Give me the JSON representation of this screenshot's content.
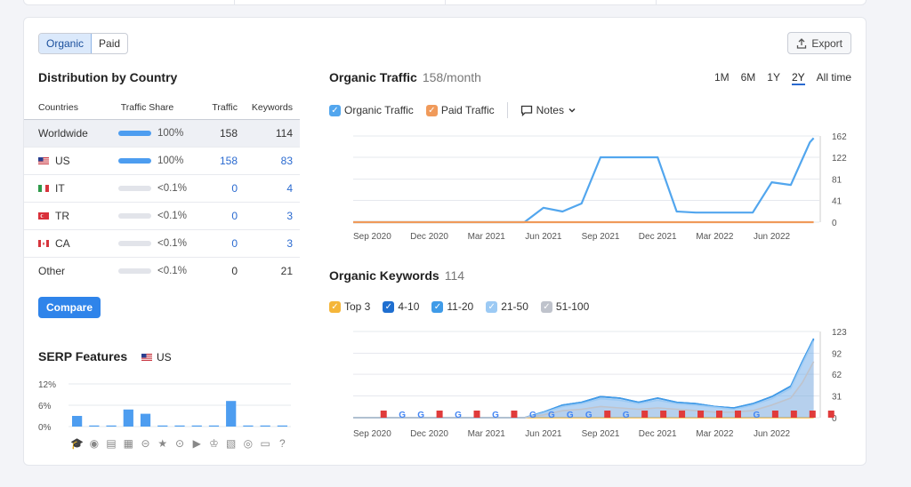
{
  "toggle": {
    "organic": "Organic",
    "paid": "Paid"
  },
  "export_label": "Export",
  "distribution": {
    "title": "Distribution by Country",
    "headers": [
      "Countries",
      "Traffic Share",
      "Traffic",
      "Keywords"
    ],
    "rows": [
      {
        "country": "Worldwide",
        "flag": "",
        "share": "100%",
        "share_fraction": 1.0,
        "traffic": "158",
        "keywords": "114"
      },
      {
        "country": "US",
        "flag": "us",
        "share": "100%",
        "share_fraction": 1.0,
        "traffic": "158",
        "keywords": "83"
      },
      {
        "country": "IT",
        "flag": "it",
        "share": "<0.1%",
        "share_fraction": 0,
        "traffic": "0",
        "keywords": "4"
      },
      {
        "country": "TR",
        "flag": "tr",
        "share": "<0.1%",
        "share_fraction": 0,
        "traffic": "0",
        "keywords": "3"
      },
      {
        "country": "CA",
        "flag": "ca",
        "share": "<0.1%",
        "share_fraction": 0,
        "traffic": "0",
        "keywords": "3"
      },
      {
        "country": "Other",
        "flag": "",
        "share": "<0.1%",
        "share_fraction": 0,
        "traffic": "0",
        "keywords": "21"
      }
    ]
  },
  "compare_label": "Compare",
  "serp": {
    "title": "SERP Features",
    "country": "US",
    "y_ticks": [
      "12%",
      "6%",
      "0%"
    ],
    "icons": [
      "graduation-cap-icon",
      "location-pin-icon",
      "document-icon",
      "image-pack-icon",
      "link-icon",
      "star-icon",
      "video-play-icon",
      "video-carousel-icon",
      "crown-icon",
      "image-icon",
      "play-circle-icon",
      "comment-icon",
      "question-icon"
    ],
    "glyphs": [
      "🎓",
      "◉",
      "▤",
      "▦",
      "⊝",
      "★",
      "⊙",
      "▶",
      "♔",
      "▧",
      "◎",
      "▭",
      "?"
    ]
  },
  "organic_traffic": {
    "title": "Organic Traffic",
    "subtitle": "158/month",
    "ranges": [
      "1M",
      "6M",
      "1Y",
      "2Y",
      "All time"
    ],
    "active_range": "2Y",
    "legend": {
      "organic": "Organic Traffic",
      "paid": "Paid Traffic",
      "notes": "Notes"
    }
  },
  "organic_keywords": {
    "title": "Organic Keywords",
    "subtitle": "114",
    "legend": [
      "Top 3",
      "4-10",
      "11-20",
      "21-50",
      "51-100"
    ]
  },
  "colors": {
    "organic": "#52a6ee",
    "paid": "#f09a5a",
    "top3": "#f5b63a",
    "k410": "#1f6fd0",
    "k1120": "#3f9be8",
    "k2150": "#9ccaf4",
    "k51100": "#bfc3cc",
    "serp_bar": "#4d9df0",
    "flag_red": "#e03b3b"
  },
  "chart_data": [
    {
      "type": "line",
      "title": "Organic Traffic",
      "x_labels": [
        "Sep 2020",
        "Dec 2020",
        "Mar 2021",
        "Jun 2021",
        "Sep 2021",
        "Dec 2021",
        "Mar 2022",
        "Jun 2022"
      ],
      "y_ticks": [
        0,
        41,
        81,
        122,
        162
      ],
      "ylim": [
        0,
        162
      ],
      "series": [
        {
          "name": "Organic Traffic",
          "points": [
            [
              0,
              0
            ],
            [
              1,
              0
            ],
            [
              2,
              0
            ],
            [
              3,
              0
            ],
            [
              4,
              0
            ],
            [
              5,
              0
            ],
            [
              6,
              0
            ],
            [
              7,
              0
            ],
            [
              8,
              0
            ],
            [
              9,
              0
            ],
            [
              10,
              27
            ],
            [
              11,
              20
            ],
            [
              12,
              35
            ],
            [
              13,
              122
            ],
            [
              14,
              122
            ],
            [
              15,
              122
            ],
            [
              16,
              122
            ],
            [
              17,
              20
            ],
            [
              18,
              18
            ],
            [
              19,
              18
            ],
            [
              20,
              18
            ],
            [
              21,
              18
            ],
            [
              22,
              75
            ],
            [
              23,
              70
            ],
            [
              24,
              150
            ],
            [
              24.2,
              158
            ]
          ]
        },
        {
          "name": "Paid Traffic",
          "points": [
            [
              0,
              0
            ],
            [
              24.2,
              0
            ]
          ]
        }
      ],
      "notes_flags": []
    },
    {
      "type": "area",
      "title": "Organic Keywords",
      "x_labels": [
        "Sep 2020",
        "Dec 2020",
        "Mar 2021",
        "Jun 2021",
        "Sep 2021",
        "Dec 2021",
        "Mar 2022",
        "Jun 2022"
      ],
      "y_ticks": [
        0,
        31,
        62,
        92,
        123
      ],
      "ylim": [
        0,
        123
      ],
      "series": [
        {
          "name": "Top 3",
          "points": [
            [
              0,
              0
            ],
            [
              24.2,
              0
            ]
          ]
        },
        {
          "name": "4-10",
          "points": [
            [
              0,
              0
            ],
            [
              9,
              0
            ],
            [
              10,
              8
            ],
            [
              11,
              18
            ],
            [
              12,
              22
            ],
            [
              13,
              30
            ],
            [
              14,
              28
            ],
            [
              15,
              22
            ],
            [
              16,
              28
            ],
            [
              17,
              22
            ],
            [
              18,
              20
            ],
            [
              19,
              16
            ],
            [
              20,
              14
            ],
            [
              21,
              20
            ],
            [
              22,
              30
            ],
            [
              23,
              45
            ],
            [
              23.6,
              80
            ],
            [
              24.2,
              112
            ]
          ]
        },
        {
          "name": "11-20",
          "points": [
            [
              0,
              0
            ],
            [
              9,
              0
            ],
            [
              10,
              8
            ],
            [
              11,
              18
            ],
            [
              12,
              22
            ],
            [
              13,
              30
            ],
            [
              14,
              28
            ],
            [
              15,
              22
            ],
            [
              16,
              28
            ],
            [
              17,
              22
            ],
            [
              18,
              20
            ],
            [
              19,
              16
            ],
            [
              20,
              14
            ],
            [
              21,
              20
            ],
            [
              22,
              30
            ],
            [
              23,
              45
            ],
            [
              23.6,
              80
            ],
            [
              24.2,
              113
            ]
          ]
        },
        {
          "name": "21-50",
          "points": [
            [
              0,
              0
            ],
            [
              9,
              0
            ],
            [
              10,
              7
            ],
            [
              11,
              16
            ],
            [
              12,
              20
            ],
            [
              13,
              27
            ],
            [
              14,
              25
            ],
            [
              15,
              20
            ],
            [
              16,
              25
            ],
            [
              17,
              20
            ],
            [
              18,
              18
            ],
            [
              19,
              15
            ],
            [
              20,
              12
            ],
            [
              21,
              18
            ],
            [
              22,
              27
            ],
            [
              23,
              42
            ],
            [
              23.6,
              77
            ],
            [
              24.2,
              110
            ]
          ]
        },
        {
          "name": "51-100",
          "points": [
            [
              0,
              0
            ],
            [
              9,
              0
            ],
            [
              10,
              4
            ],
            [
              11,
              10
            ],
            [
              12,
              12
            ],
            [
              13,
              16
            ],
            [
              14,
              14
            ],
            [
              15,
              12
            ],
            [
              16,
              14
            ],
            [
              17,
              12
            ],
            [
              18,
              10
            ],
            [
              19,
              8
            ],
            [
              20,
              8
            ],
            [
              21,
              10
            ],
            [
              22,
              18
            ],
            [
              23,
              28
            ],
            [
              23.6,
              50
            ],
            [
              24.2,
              80
            ]
          ]
        }
      ],
      "markers": [
        "flag",
        "G",
        "G",
        "flag",
        "G",
        "flag",
        "G",
        "flag",
        "G",
        "G",
        "G",
        "G",
        "flag",
        "G",
        "flag",
        "flag",
        "flag",
        "flag",
        "flag",
        "flag",
        "G",
        "flag",
        "flag",
        "flag",
        "flag"
      ]
    },
    {
      "type": "bar",
      "title": "SERP Features",
      "categories": [
        "graduation-cap",
        "location-pin",
        "document",
        "image-pack",
        "link",
        "star",
        "video-play",
        "video-carousel",
        "crown",
        "image",
        "play-circle",
        "comment",
        "question"
      ],
      "values": [
        3.0,
        0.3,
        0.3,
        4.8,
        3.6,
        0.3,
        0.3,
        0.3,
        0.3,
        7.2,
        0.3,
        0.3,
        0.3
      ],
      "y_ticks": [
        "12%",
        "6%",
        "0%"
      ],
      "ylim": [
        0,
        12
      ]
    }
  ]
}
